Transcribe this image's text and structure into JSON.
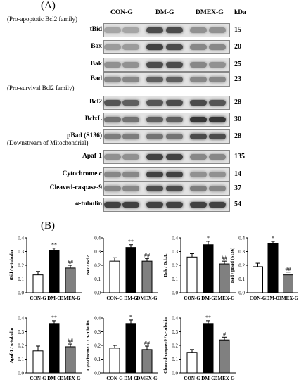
{
  "panel_a_label": "(A)",
  "panel_b_label": "(B)",
  "groups": [
    "CON-G",
    "DM-G",
    "DMEX-G"
  ],
  "kda_header": "kDa",
  "categories": [
    "(Pro-apoptotic Bcl2 family)",
    "(Pro-survival Bcl2 family)",
    "(Downstream of Mitochondrial)"
  ],
  "blots": [
    {
      "label": "tBid",
      "kda": "15",
      "intensity": [
        0.35,
        0.35,
        0.8,
        0.8,
        0.45,
        0.45
      ]
    },
    {
      "label": "Bax",
      "kda": "20",
      "intensity": [
        0.4,
        0.4,
        0.85,
        0.8,
        0.5,
        0.5
      ]
    },
    {
      "label": "Bak",
      "kda": "25",
      "intensity": [
        0.45,
        0.45,
        0.8,
        0.8,
        0.5,
        0.45
      ]
    },
    {
      "label": "Bad",
      "kda": "23",
      "intensity": [
        0.5,
        0.5,
        0.7,
        0.7,
        0.5,
        0.5
      ]
    },
    {
      "label": "Bcl2",
      "kda": "28",
      "intensity": [
        0.75,
        0.7,
        0.75,
        0.8,
        0.8,
        0.75
      ]
    },
    {
      "label": "BclxL",
      "kda": "30",
      "intensity": [
        0.6,
        0.6,
        0.7,
        0.7,
        0.9,
        0.9
      ]
    },
    {
      "label": "pBad (S136)",
      "kda": "28",
      "intensity": [
        0.55,
        0.55,
        0.6,
        0.6,
        0.8,
        0.8
      ]
    },
    {
      "label": "Apaf-1",
      "kda": "135",
      "intensity": [
        0.45,
        0.45,
        0.85,
        0.85,
        0.5,
        0.5
      ]
    },
    {
      "label": "Cytochrome c",
      "kda": "14",
      "intensity": [
        0.5,
        0.5,
        0.85,
        0.85,
        0.45,
        0.45
      ]
    },
    {
      "label": "Cleaved-caspase-9",
      "kda": "37",
      "intensity": [
        0.5,
        0.5,
        0.8,
        0.8,
        0.55,
        0.5
      ]
    },
    {
      "label": "α-tubulin",
      "kda": "54",
      "intensity": [
        0.85,
        0.85,
        0.85,
        0.85,
        0.85,
        0.85
      ]
    }
  ],
  "colors": {
    "con": "#ffffff",
    "dm": "#000000",
    "dmex": "#808080"
  },
  "chart_data": [
    {
      "type": "bar",
      "ylabel": "tBid / α-tubulin",
      "categories": [
        "CON-G",
        "DM-G",
        "DMEX-G"
      ],
      "values": [
        0.13,
        0.31,
        0.18
      ],
      "errors": [
        0.025,
        0.015,
        0.02
      ],
      "marks": [
        "",
        "**",
        "##"
      ],
      "ylim": [
        0,
        0.4
      ],
      "yticks": [
        "0.0",
        "0.1",
        "0.2",
        "0.3",
        "0.4"
      ],
      "ytick_values": [
        0,
        0.1,
        0.2,
        0.3,
        0.4
      ]
    },
    {
      "type": "bar",
      "ylabel": "Bax / Bcl2",
      "categories": [
        "CON-G",
        "DM-G",
        "DMEX-G"
      ],
      "values": [
        0.23,
        0.33,
        0.23
      ],
      "errors": [
        0.025,
        0.02,
        0.02
      ],
      "marks": [
        "",
        "**",
        "##"
      ],
      "ylim": [
        0,
        0.4
      ],
      "yticks": [
        "0.0",
        "0.1",
        "0.2",
        "0.3",
        "0.4"
      ],
      "ytick_values": [
        0,
        0.1,
        0.2,
        0.3,
        0.4
      ]
    },
    {
      "type": "bar",
      "ylabel": "Bak / BclxL",
      "categories": [
        "CON-G",
        "DM-G",
        "DMEX-G"
      ],
      "values": [
        0.26,
        0.35,
        0.21
      ],
      "errors": [
        0.025,
        0.025,
        0.02
      ],
      "marks": [
        "",
        "*",
        "##"
      ],
      "ylim": [
        0,
        0.4
      ],
      "yticks": [
        "0.0",
        "0.1",
        "0.2",
        "0.3",
        "0.4"
      ],
      "ytick_values": [
        0,
        0.1,
        0.2,
        0.3,
        0.4
      ]
    },
    {
      "type": "bar",
      "ylabel": "Bad / pBad (S136)",
      "categories": [
        "CON-G",
        "DM-G",
        "DMEX-G"
      ],
      "values": [
        0.19,
        0.36,
        0.13
      ],
      "errors": [
        0.025,
        0.015,
        0.02
      ],
      "marks": [
        "",
        "*",
        "##"
      ],
      "ylim": [
        0,
        0.4
      ],
      "yticks": [
        "0.0",
        "0.1",
        "0.2",
        "0.3",
        "0.4"
      ],
      "ytick_values": [
        0,
        0.1,
        0.2,
        0.3,
        0.4
      ]
    },
    {
      "type": "bar",
      "ylabel": "Apaf-1 / α-tubulin",
      "categories": [
        "CON-G",
        "DM-G",
        "DMEX-G"
      ],
      "values": [
        0.16,
        0.36,
        0.19
      ],
      "errors": [
        0.035,
        0.02,
        0.02
      ],
      "marks": [
        "",
        "**",
        "##"
      ],
      "ylim": [
        0,
        0.4
      ],
      "yticks": [
        "0.0",
        "0.1",
        "0.2",
        "0.3",
        "0.4"
      ],
      "ytick_values": [
        0,
        0.1,
        0.2,
        0.3,
        0.4
      ]
    },
    {
      "type": "bar",
      "ylabel": "Cytochrome C / α-tubulin",
      "categories": [
        "CON-G",
        "DM-G",
        "DMEX-G"
      ],
      "values": [
        0.18,
        0.36,
        0.17
      ],
      "errors": [
        0.02,
        0.025,
        0.025
      ],
      "marks": [
        "",
        "*",
        "##"
      ],
      "ylim": [
        0,
        0.4
      ],
      "yticks": [
        "0.0",
        "0.1",
        "0.2",
        "0.3",
        "0.4"
      ],
      "ytick_values": [
        0,
        0.1,
        0.2,
        0.3,
        0.4
      ]
    },
    {
      "type": "bar",
      "ylabel": "Cleaved-caspase9 / α-tubulin",
      "categories": [
        "CON-G",
        "DM-G",
        "DMEX-G"
      ],
      "values": [
        0.15,
        0.36,
        0.24
      ],
      "errors": [
        0.02,
        0.02,
        0.02
      ],
      "marks": [
        "",
        "**",
        "#"
      ],
      "ylim": [
        0,
        0.4
      ],
      "yticks": [
        "0.0",
        "0.1",
        "0.2",
        "0.3",
        "0.4"
      ],
      "ytick_values": [
        0,
        0.1,
        0.2,
        0.3,
        0.4
      ]
    }
  ]
}
